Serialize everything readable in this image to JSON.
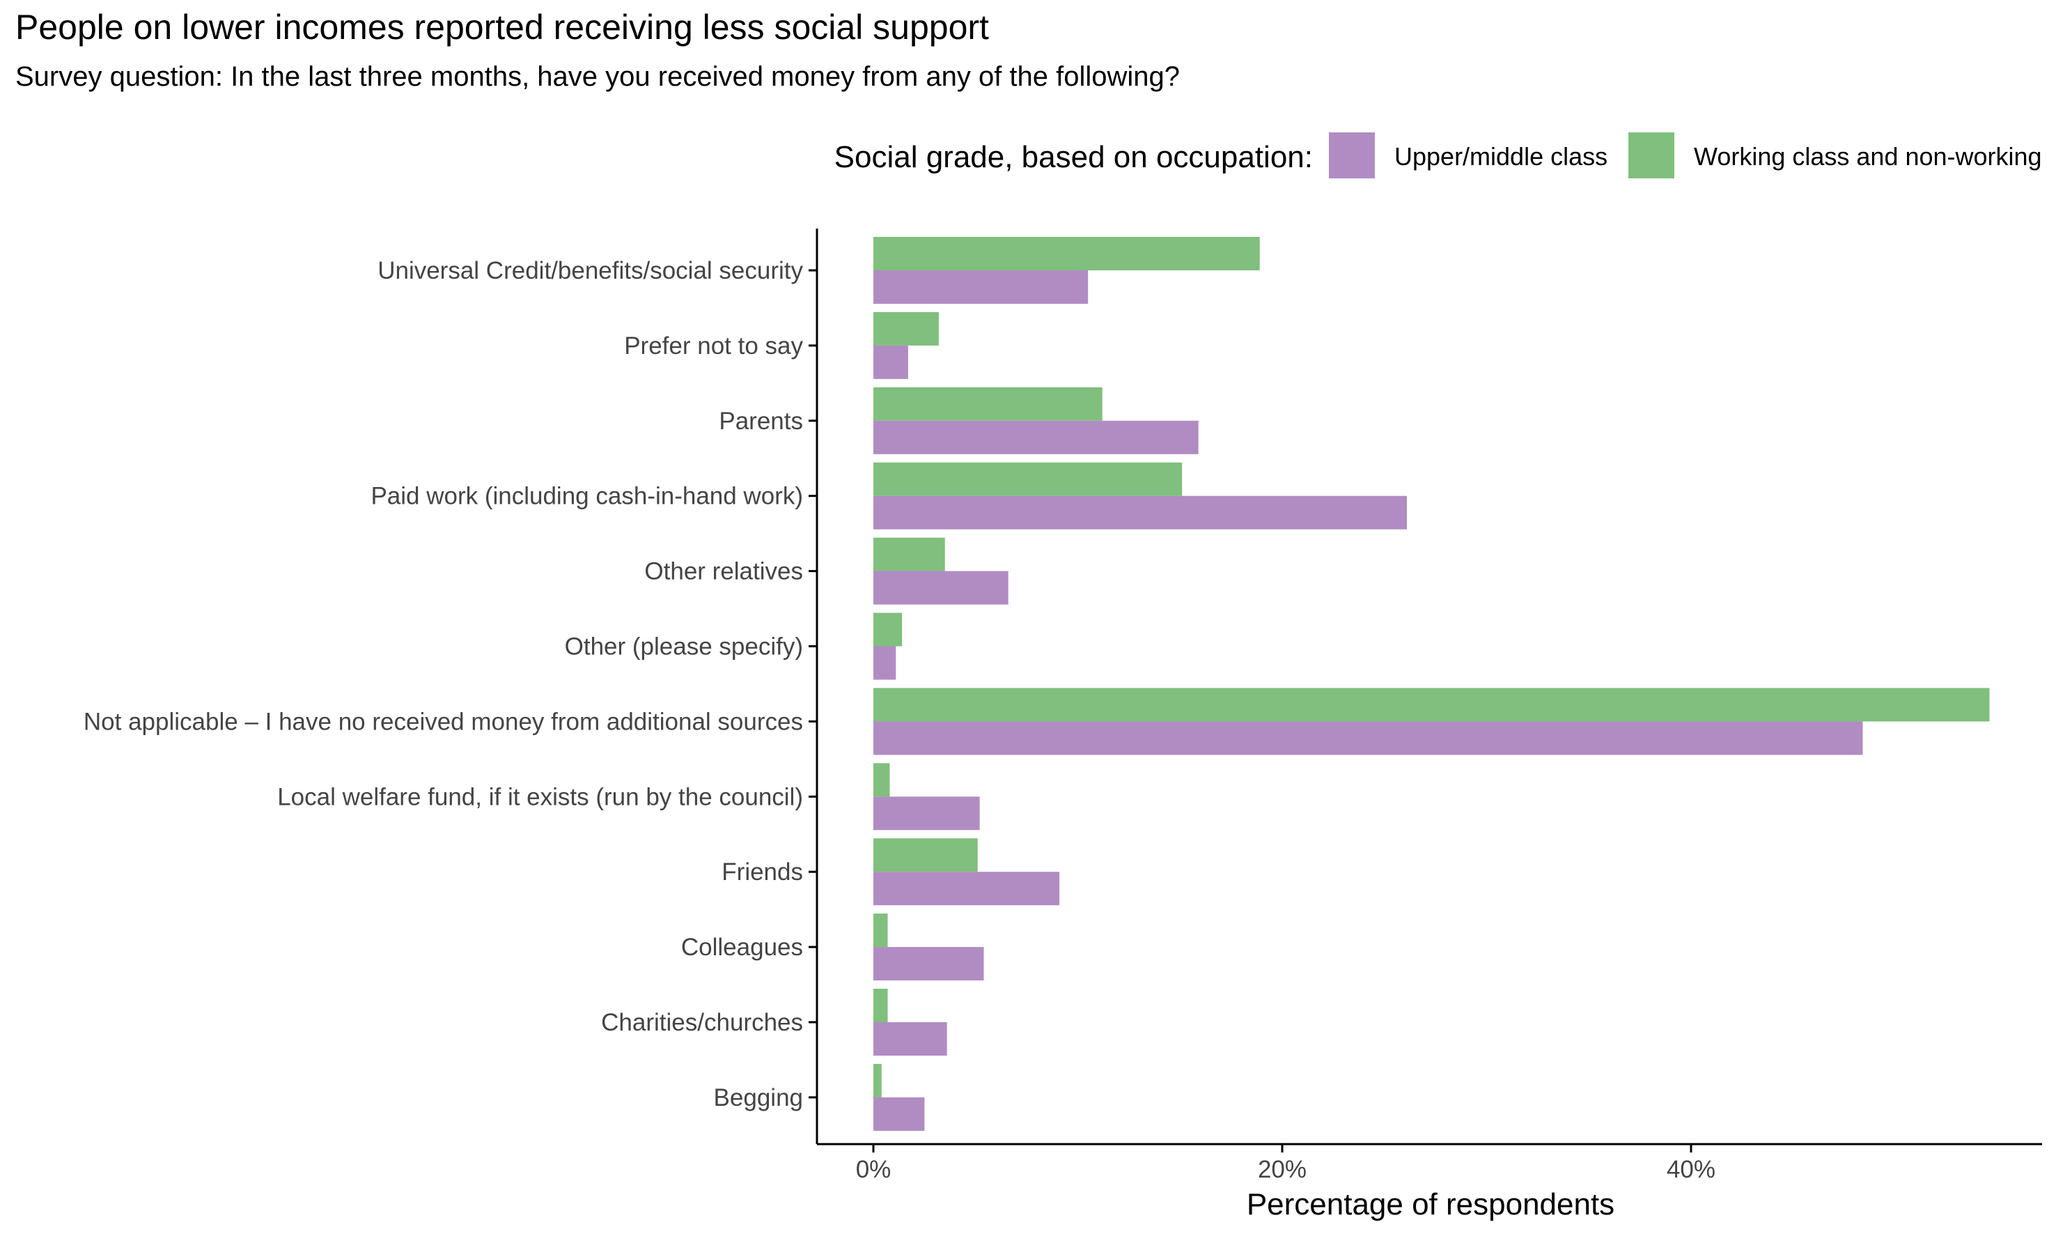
{
  "chart_data": {
    "type": "bar",
    "orientation": "horizontal",
    "title": "People on lower incomes reported receiving less social support",
    "subtitle": "Survey question: In the last three months, have you received money from any of the following?",
    "xlabel": "Percentage of respondents",
    "ylabel": "",
    "xlim": [
      0,
      55
    ],
    "xticks": [
      {
        "value": 0,
        "label": "0%"
      },
      {
        "value": 20,
        "label": "20%"
      },
      {
        "value": 40,
        "label": "40%"
      }
    ],
    "grid": false,
    "legend": {
      "title": "Social grade, based on occupation:",
      "position": "top-right"
    },
    "categories": [
      "Universal Credit/benefits/social security",
      "Prefer not to say",
      "Parents",
      "Paid work (including cash-in-hand work)",
      "Other relatives",
      "Other (please specify)",
      "Not applicable – I have no received money from additional sources",
      "Local welfare fund, if it exists (run by the council)",
      "Friends",
      "Colleagues",
      "Charities/churches",
      "Begging"
    ],
    "series": [
      {
        "name": "Upper/middle class",
        "color": "#b08cc3",
        "values": [
          10.5,
          1.7,
          15.9,
          26.1,
          6.6,
          1.1,
          48.4,
          5.2,
          9.1,
          5.4,
          3.6,
          2.5
        ]
      },
      {
        "name": "Working class and non-working",
        "color": "#80bf7d",
        "values": [
          18.9,
          3.2,
          11.2,
          15.1,
          3.5,
          1.4,
          54.6,
          0.8,
          5.1,
          0.7,
          0.7,
          0.4
        ]
      }
    ]
  }
}
